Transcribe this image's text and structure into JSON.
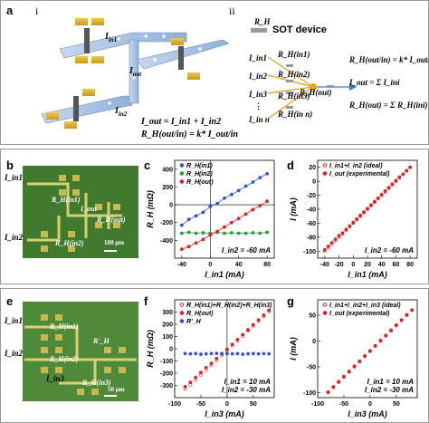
{
  "panel_labels": {
    "a": "a",
    "b": "b",
    "c": "c",
    "d": "d",
    "e": "e",
    "f": "f",
    "g": "g"
  },
  "a": {
    "sub_i": "i",
    "sub_ii": "ii",
    "iin1": "I",
    "iin1_sub": "in1",
    "iin2": "I",
    "iin2_sub": "in2",
    "iout": "I",
    "iout_sub": "out",
    "eq1": "I_out = I_in1 + I_in2",
    "eq2": "R_H(out/in) = k* I_out/in",
    "rh_legend": "R_H",
    "device": "SOT device",
    "inputs": [
      "I_in1",
      "I_in2",
      "I_in3",
      "⋮",
      "I_in n"
    ],
    "rh_inputs": [
      "R_H(in1)",
      "R_H(in2)",
      "R_H(in3)",
      "R_H(in n)"
    ],
    "rh_out": "R_H(out)",
    "eq_ii_1": "R_H(out/in) = k* I_out/in",
    "eq_ii_2": "I_out = Σ I_ini",
    "eq_ii_3": "R_H(out) = Σ R_H(ini)"
  },
  "b": {
    "iin1": "I_in1",
    "iin2": "I_in2",
    "iout": "I_out",
    "rh1": "R_H(in1)",
    "rh2": "R_H(in2)",
    "rhout": "R_H(out)",
    "scale": "100 μm"
  },
  "e": {
    "iin1": "I_in1",
    "iin2": "I_in2",
    "iin3": "I_in3",
    "rh1": "R_H(in1)",
    "rh2": "R_H(in2)",
    "rh3": "R_H(in3)",
    "rh": "R'_H",
    "scale": "50 μm"
  },
  "colors": {
    "blue": "#3355cc",
    "green": "#2a9a3a",
    "red": "#e02020",
    "panel_border": "#9a9a9a"
  },
  "chart_data": [
    {
      "id": "c",
      "type": "line",
      "xlabel": "I_in1 (mA)",
      "ylabel": "R_H (mΩ)",
      "xlim": [
        -50,
        90
      ],
      "ylim": [
        -600,
        500
      ],
      "xticks": [
        -40,
        0,
        40,
        80
      ],
      "yticks": [
        -400,
        -200,
        0,
        200,
        400
      ],
      "annotation": "I_in2 = -60 mA",
      "series": [
        {
          "name": "R_H(in1)",
          "color": "blue",
          "marker": "circle",
          "x": [
            -40,
            -30,
            -20,
            -10,
            0,
            10,
            20,
            30,
            40,
            50,
            60,
            70,
            80
          ],
          "y": [
            -230,
            -165,
            -125,
            -85,
            -20,
            15,
            75,
            115,
            160,
            210,
            255,
            305,
            350
          ]
        },
        {
          "name": "R_H(in2)",
          "color": "green",
          "marker": "circle",
          "x": [
            -40,
            -30,
            -20,
            -10,
            0,
            10,
            20,
            30,
            40,
            50,
            60,
            70,
            80
          ],
          "y": [
            -320,
            -310,
            -320,
            -315,
            -320,
            -310,
            -320,
            -315,
            -320,
            -320,
            -315,
            -320,
            -310
          ]
        },
        {
          "name": "R_H(out)",
          "color": "red",
          "marker": "circle",
          "x": [
            -40,
            -30,
            -20,
            -10,
            0,
            10,
            20,
            30,
            40,
            50,
            60,
            70,
            80
          ],
          "y": [
            -500,
            -470,
            -430,
            -390,
            -340,
            -300,
            -250,
            -200,
            -155,
            -105,
            -55,
            -10,
            40
          ]
        }
      ]
    },
    {
      "id": "d",
      "type": "scatter",
      "xlabel": "I_in1 (mA)",
      "ylabel": "I (mA)",
      "xlim": [
        -50,
        90
      ],
      "ylim": [
        -110,
        30
      ],
      "xticks": [
        -40,
        -20,
        0,
        20,
        40,
        60,
        80
      ],
      "yticks": [
        -100,
        -80,
        -60,
        -40,
        -20,
        0,
        20
      ],
      "annotation": "I_in2 = -60 mA",
      "series": [
        {
          "name": "I_in1+I_in2 (ideal)",
          "color": "red",
          "marker": "circle-open",
          "x": [
            -40,
            -35,
            -30,
            -25,
            -20,
            -15,
            -10,
            -5,
            0,
            5,
            10,
            15,
            20,
            25,
            30,
            35,
            40,
            45,
            50,
            55,
            60,
            65,
            70,
            75,
            80
          ],
          "y": [
            -100,
            -95,
            -90,
            -85,
            -80,
            -75,
            -70,
            -65,
            -60,
            -55,
            -50,
            -45,
            -40,
            -35,
            -30,
            -25,
            -20,
            -15,
            -10,
            -5,
            0,
            5,
            10,
            15,
            20
          ]
        },
        {
          "name": "I_out (experimental)",
          "color": "red",
          "marker": "circle",
          "x": [
            -40,
            -35,
            -30,
            -25,
            -20,
            -15,
            -10,
            -5,
            0,
            5,
            10,
            15,
            20,
            25,
            30,
            35,
            40,
            45,
            50,
            55,
            60,
            65,
            70,
            75,
            80
          ],
          "y": [
            -98,
            -93,
            -88,
            -83,
            -78,
            -74,
            -69,
            -64,
            -59,
            -54,
            -49,
            -44,
            -39,
            -34,
            -29,
            -24,
            -19,
            -14,
            -9,
            -4,
            1,
            6,
            10,
            15,
            20
          ]
        }
      ]
    },
    {
      "id": "f",
      "type": "scatter",
      "xlabel": "I_in3 (mA)",
      "ylabel": "R_H (mΩ)",
      "xlim": [
        -100,
        90
      ],
      "ylim": [
        -400,
        400
      ],
      "xticks": [
        -100,
        -50,
        0,
        50
      ],
      "yticks": [
        -300,
        -200,
        -100,
        0,
        100,
        200,
        300
      ],
      "annotations": [
        "I_in1 = 10 mA",
        "I_in2 = -30 mA"
      ],
      "series": [
        {
          "name": "R_H(in1)+R_H(in2)+R_H(in3)",
          "color": "red",
          "marker": "circle-open",
          "x": [
            -80,
            -70,
            -60,
            -50,
            -40,
            -30,
            -20,
            -10,
            0,
            10,
            20,
            30,
            40,
            50,
            60,
            70,
            80
          ],
          "y": [
            -330,
            -295,
            -255,
            -215,
            -175,
            -135,
            -95,
            -55,
            -15,
            25,
            65,
            105,
            145,
            185,
            225,
            265,
            305
          ]
        },
        {
          "name": "R_H(out)",
          "color": "red",
          "marker": "circle",
          "x": [
            -80,
            -70,
            -60,
            -50,
            -40,
            -30,
            -20,
            -10,
            0,
            10,
            20,
            30,
            40,
            50,
            60,
            70,
            80
          ],
          "y": [
            -310,
            -275,
            -235,
            -195,
            -155,
            -120,
            -80,
            -40,
            -5,
            35,
            75,
            115,
            155,
            195,
            235,
            275,
            315
          ]
        },
        {
          "name": "R'_H",
          "color": "blue",
          "marker": "circle",
          "x": [
            -80,
            -70,
            -60,
            -50,
            -40,
            -30,
            -20,
            -10,
            0,
            10,
            20,
            30,
            40,
            50,
            60,
            70,
            80
          ],
          "y": [
            -40,
            -42,
            -40,
            -45,
            -42,
            -40,
            -38,
            -42,
            -40,
            -42,
            -40,
            -45,
            -42,
            -40,
            -42,
            -40,
            -42
          ]
        }
      ]
    },
    {
      "id": "g",
      "type": "scatter",
      "xlabel": "I_in3 (mA)",
      "ylabel": "I (mA)",
      "xlim": [
        -100,
        90
      ],
      "ylim": [
        -110,
        80
      ],
      "xticks": [
        -100,
        -50,
        0,
        50
      ],
      "yticks": [
        -100,
        -50,
        0,
        50
      ],
      "annotations": [
        "I_in1 = 10 mA",
        "I_in2 = -30 mA"
      ],
      "series": [
        {
          "name": "I_in1+I_in2+I_in3 (ideal)",
          "color": "red",
          "marker": "circle-open",
          "x": [
            -80,
            -70,
            -60,
            -50,
            -40,
            -30,
            -20,
            -10,
            0,
            10,
            20,
            30,
            40,
            50,
            60,
            70,
            80
          ],
          "y": [
            -100,
            -90,
            -80,
            -70,
            -60,
            -50,
            -40,
            -30,
            -20,
            -10,
            0,
            10,
            20,
            30,
            40,
            50,
            60
          ]
        },
        {
          "name": "I_out (experimental)",
          "color": "red",
          "marker": "circle",
          "x": [
            -80,
            -70,
            -60,
            -50,
            -40,
            -30,
            -20,
            -10,
            0,
            10,
            20,
            30,
            40,
            50,
            60,
            70,
            80
          ],
          "y": [
            -99,
            -89,
            -79,
            -69,
            -59,
            -49,
            -39,
            -29,
            -19,
            -9,
            1,
            11,
            21,
            31,
            41,
            51,
            60
          ]
        }
      ]
    }
  ]
}
